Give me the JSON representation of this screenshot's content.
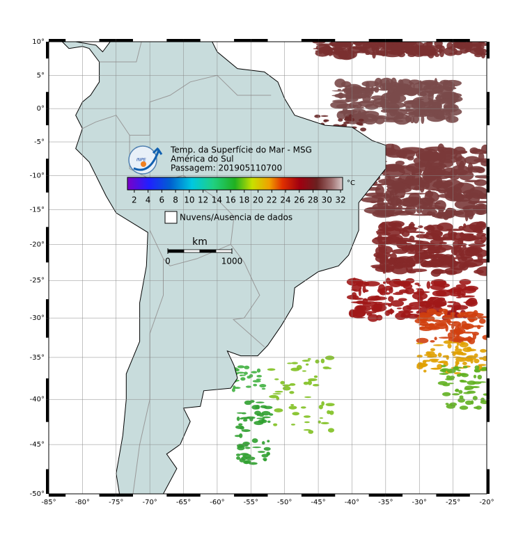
{
  "map": {
    "lonlim": [
      -85,
      -20
    ],
    "latlim": [
      -50,
      10
    ],
    "lon_ticks": [
      {
        "value": -85,
        "label": "-85°"
      },
      {
        "value": -80,
        "label": "-80°"
      },
      {
        "value": -75,
        "label": "-75°"
      },
      {
        "value": -70,
        "label": "-70°"
      },
      {
        "value": -65,
        "label": "-65°"
      },
      {
        "value": -60,
        "label": "-60°"
      },
      {
        "value": -55,
        "label": "-55°"
      },
      {
        "value": -50,
        "label": "-50°"
      },
      {
        "value": -45,
        "label": "-45°"
      },
      {
        "value": -40,
        "label": "-40°"
      },
      {
        "value": -35,
        "label": "-35°"
      },
      {
        "value": -30,
        "label": "-30°"
      },
      {
        "value": -25,
        "label": "-25°"
      },
      {
        "value": -20,
        "label": "-20°"
      }
    ],
    "lat_ticks": [
      {
        "value": 10,
        "label": "10°"
      },
      {
        "value": 5,
        "label": "5°"
      },
      {
        "value": 0,
        "label": "0°"
      },
      {
        "value": -5,
        "label": "-5°"
      },
      {
        "value": -10,
        "label": "-10°"
      },
      {
        "value": -15,
        "label": "-15°"
      },
      {
        "value": -20,
        "label": "-20°"
      },
      {
        "value": -25,
        "label": "-25°"
      },
      {
        "value": -30,
        "label": "-30°"
      },
      {
        "value": -35,
        "label": "-35°"
      },
      {
        "value": -40,
        "label": "-40°"
      },
      {
        "value": -45,
        "label": "-45°"
      },
      {
        "value": -50,
        "label": "-50°"
      }
    ],
    "grid": true
  },
  "legend": {
    "logo": "INPE",
    "title": "Temp. da Superfície do Mar - MSG",
    "region": "América do Sul",
    "pass": "Passagem: 201905110700",
    "colorbar": {
      "range": [
        1,
        32.3
      ],
      "ticks": [
        2,
        4,
        6,
        8,
        10,
        12,
        14,
        16,
        18,
        20,
        22,
        24,
        26,
        28,
        30,
        32
      ],
      "unit": "°C"
    },
    "no_data": "Nuvens/Ausencia de dados",
    "scale_bar": {
      "unit": "km",
      "ticks": [
        0,
        1000
      ]
    }
  }
}
